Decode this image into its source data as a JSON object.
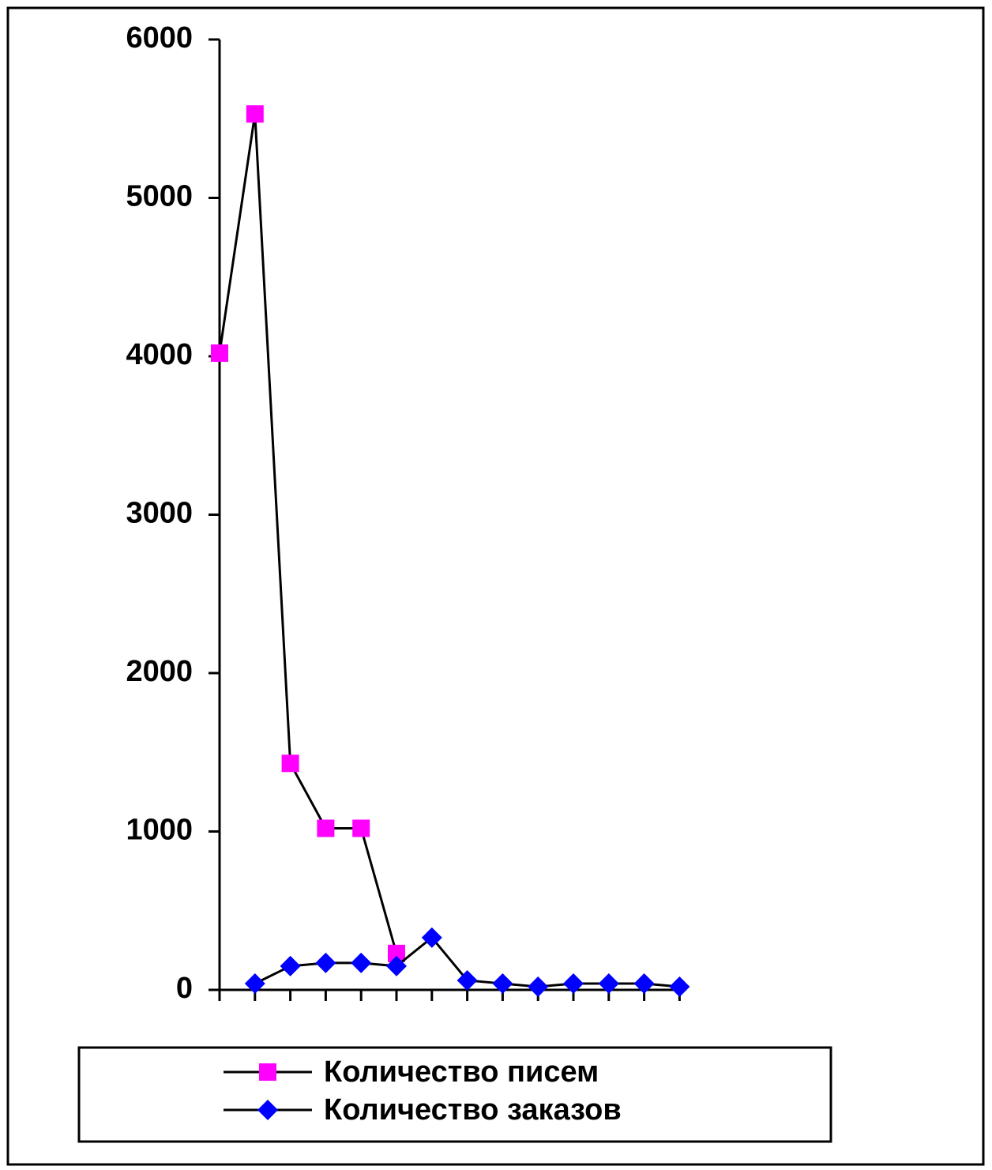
{
  "chart_data": {
    "type": "line",
    "categories": [
      null,
      null,
      null,
      null,
      null,
      null,
      null,
      null,
      null,
      null,
      null,
      null,
      null,
      null
    ],
    "series": [
      {
        "name": "Количество писем",
        "color": "#ff00ff",
        "marker": "square",
        "values": [
          4020,
          5530,
          1430,
          1020,
          1020,
          230,
          null,
          null,
          null,
          null,
          null,
          null,
          null,
          null
        ]
      },
      {
        "name": "Количество заказов",
        "color": "#0000ff",
        "marker": "diamond",
        "values": [
          null,
          40,
          150,
          170,
          170,
          150,
          330,
          60,
          40,
          20,
          40,
          40,
          40,
          20
        ]
      }
    ],
    "ylim": [
      0,
      6000
    ],
    "yticks": [
      0,
      1000,
      2000,
      3000,
      4000,
      5000,
      6000
    ],
    "grid": false
  }
}
